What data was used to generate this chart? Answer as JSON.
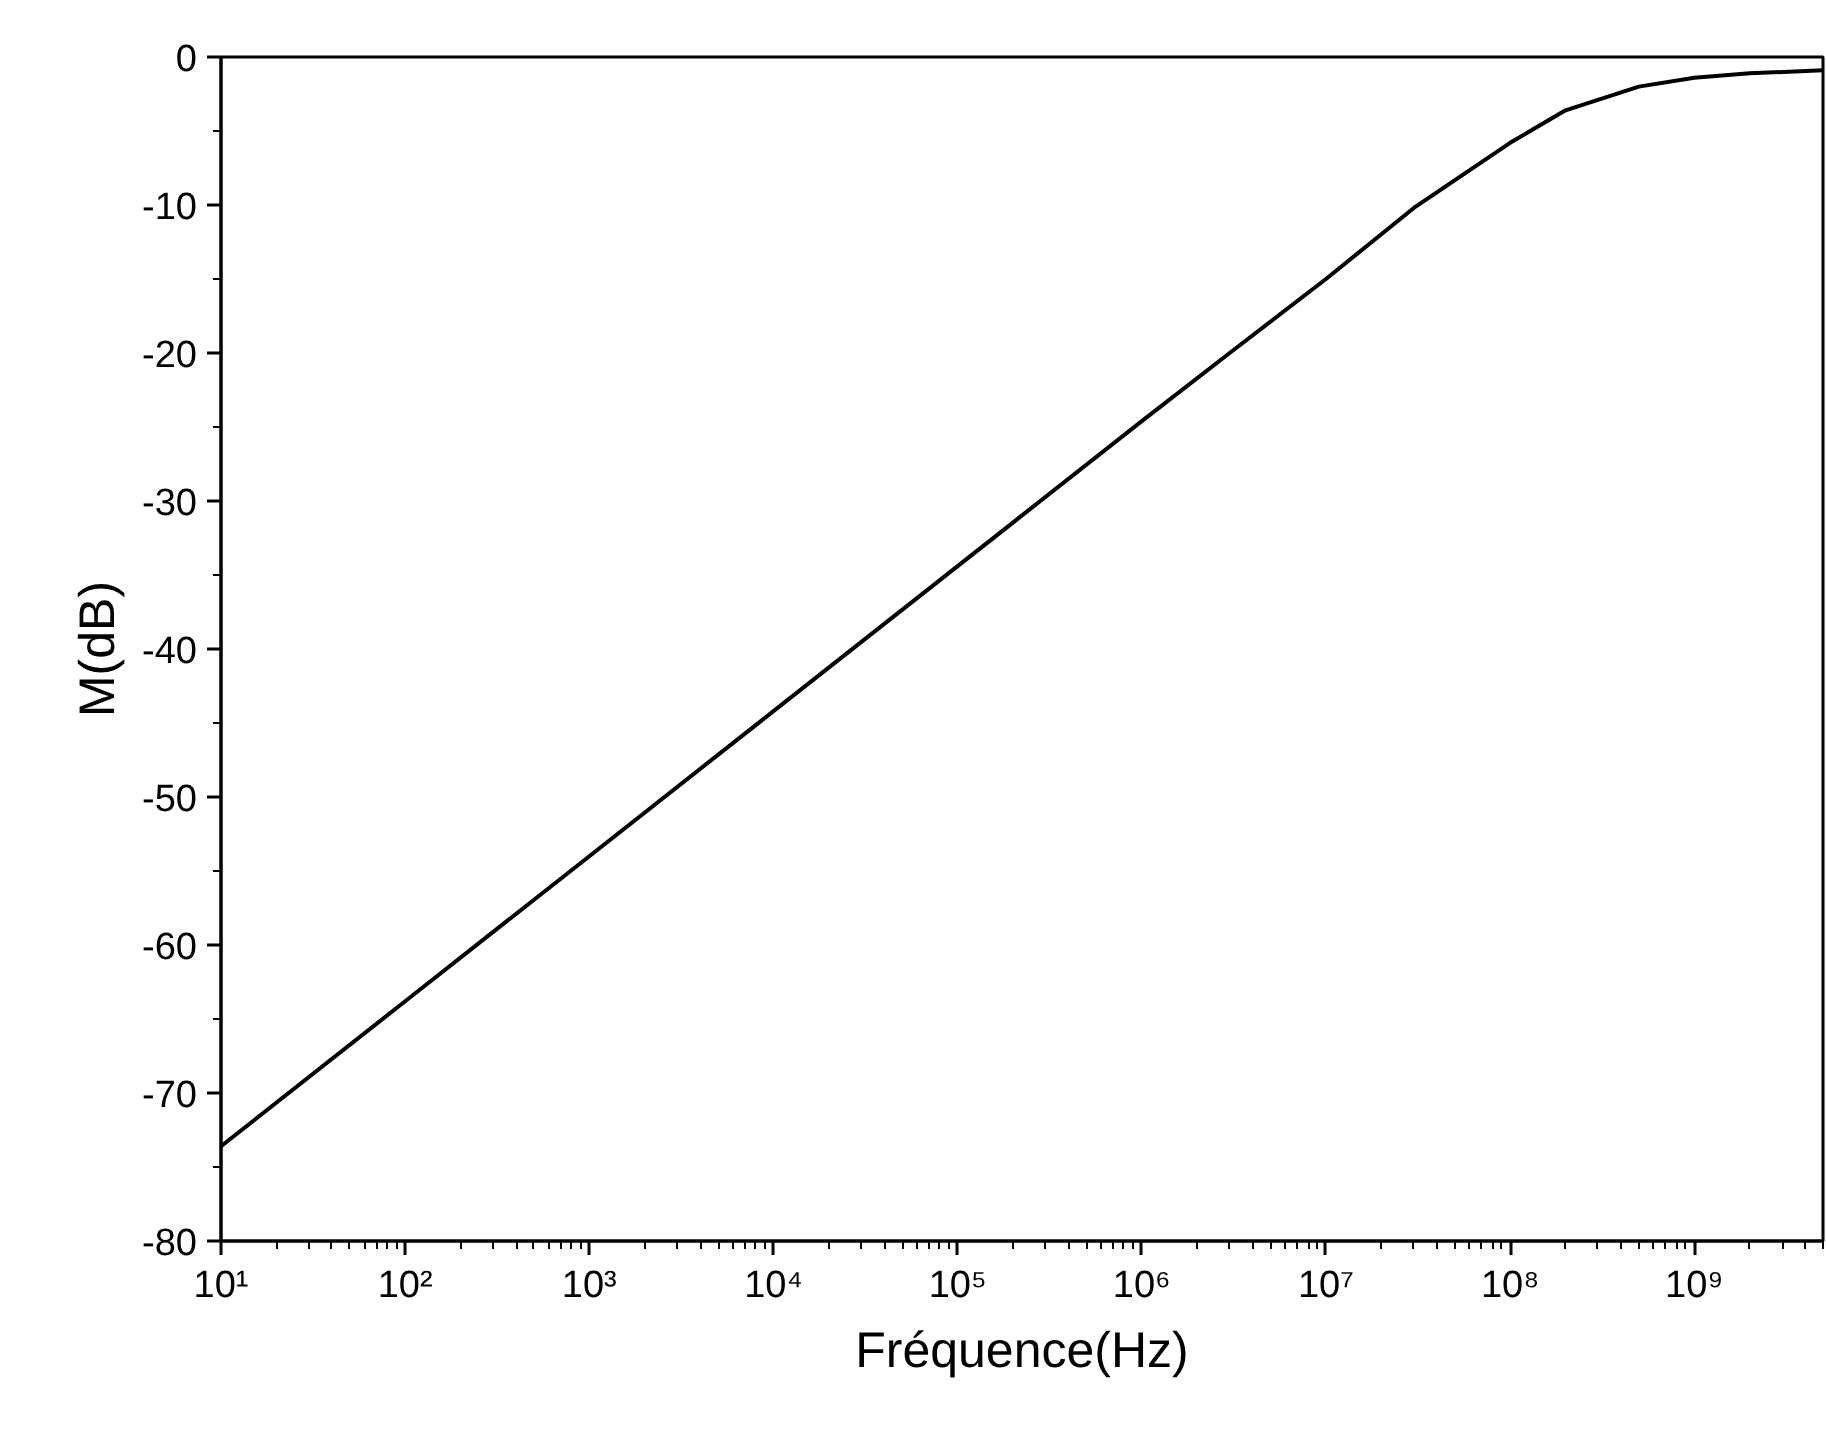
{
  "chart_data": {
    "type": "line",
    "xlabel": "Fréquence(Hz)",
    "ylabel": "M(dB)",
    "log": "x",
    "x": [
      10,
      100,
      1000,
      10000,
      100000,
      1000000,
      3000000,
      10000000,
      30000000,
      100000000,
      200000000,
      500000000,
      1000000000,
      2000000000,
      5000000000
    ],
    "series": [
      {
        "color": "#000000",
        "values": [
          -73.6,
          -63.8,
          -54,
          -44.2,
          -34.4,
          -24.6,
          -20,
          -15,
          -10.2,
          -5.8,
          -3.6,
          -2,
          -1.4,
          -1.1,
          -0.9
        ]
      }
    ],
    "xlim": [
      10,
      5000000000
    ],
    "ylim": [
      -80,
      0
    ],
    "xticks": [
      {
        "value": 10,
        "label": "10¹"
      },
      {
        "value": 100,
        "label": "10²"
      },
      {
        "value": 1000,
        "label": "10³"
      },
      {
        "value": 10000,
        "label": "10⁴"
      },
      {
        "value": 100000,
        "label": "10⁵"
      },
      {
        "value": 1000000,
        "label": "10⁶"
      },
      {
        "value": 10000000,
        "label": "10⁷"
      },
      {
        "value": 100000000,
        "label": "10⁸"
      },
      {
        "value": 1000000000,
        "label": "10⁹"
      }
    ],
    "yticks": [
      -80,
      -70,
      -60,
      -50,
      -40,
      -30,
      -20,
      -10,
      0
    ],
    "grid": false,
    "marker": "none",
    "line_style": "solid"
  }
}
